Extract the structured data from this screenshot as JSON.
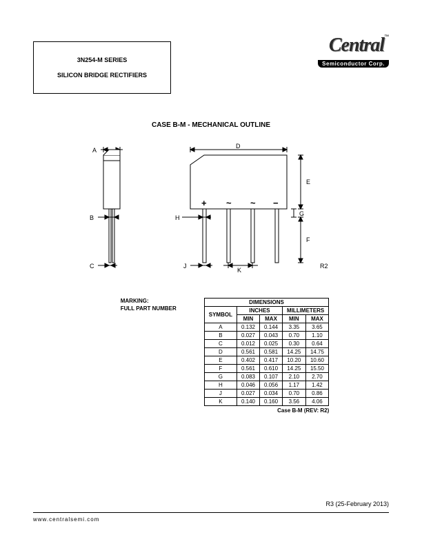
{
  "header": {
    "series": "3N254-M SERIES",
    "product": "SILICON BRIDGE RECTIFIERS",
    "logo_main": "Central",
    "logo_sub": "Semiconductor Corp.",
    "logo_tm": "™"
  },
  "section_title": "CASE B-M - MECHANICAL OUTLINE",
  "diagram": {
    "labels": {
      "A": "A",
      "B": "B",
      "C": "C",
      "D": "D",
      "E": "E",
      "F": "F",
      "G": "G",
      "H": "H",
      "J": "J",
      "K": "K"
    },
    "symbols": {
      "plus": "+",
      "tilde": "~",
      "minus": "−"
    },
    "rev": "R2",
    "stroke": "#000000",
    "fill_body": "#ffffff"
  },
  "marking": {
    "line1": "MARKING:",
    "line2": "FULL PART NUMBER"
  },
  "dimensions": {
    "title": "DIMENSIONS",
    "col_symbol": "SYMBOL",
    "col_inches": "INCHES",
    "col_mm": "MILLIMETERS",
    "col_min": "MIN",
    "col_max": "MAX",
    "rows": [
      {
        "s": "A",
        "imin": "0.132",
        "imax": "0.144",
        "mmin": "3.35",
        "mmax": "3.65"
      },
      {
        "s": "B",
        "imin": "0.027",
        "imax": "0.043",
        "mmin": "0.70",
        "mmax": "1.10"
      },
      {
        "s": "C",
        "imin": "0.012",
        "imax": "0.025",
        "mmin": "0.30",
        "mmax": "0.64"
      },
      {
        "s": "D",
        "imin": "0.561",
        "imax": "0.581",
        "mmin": "14.25",
        "mmax": "14.75"
      },
      {
        "s": "E",
        "imin": "0.402",
        "imax": "0.417",
        "mmin": "10.20",
        "mmax": "10.60"
      },
      {
        "s": "F",
        "imin": "0.561",
        "imax": "0.610",
        "mmin": "14.25",
        "mmax": "15.50"
      },
      {
        "s": "G",
        "imin": "0.083",
        "imax": "0.107",
        "mmin": "2.10",
        "mmax": "2.70"
      },
      {
        "s": "H",
        "imin": "0.046",
        "imax": "0.056",
        "mmin": "1.17",
        "mmax": "1.42"
      },
      {
        "s": "J",
        "imin": "0.027",
        "imax": "0.034",
        "mmin": "0.70",
        "mmax": "0.86"
      },
      {
        "s": "K",
        "imin": "0.140",
        "imax": "0.160",
        "mmin": "3.56",
        "mmax": "4.06"
      }
    ],
    "caption": "Case B-M (REV: R2)"
  },
  "footer": {
    "revision": "R3 (25-February 2013)",
    "url": "www.centralsemi.com"
  }
}
